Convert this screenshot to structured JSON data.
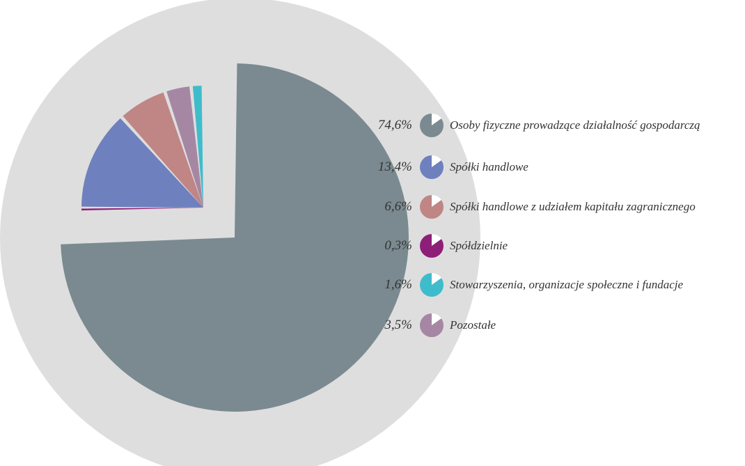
{
  "chart_data": {
    "type": "pie",
    "title": "",
    "slices": [
      {
        "label": "Osoby fizyczne prowadzące działalność gospodarczą",
        "value": 74.6,
        "value_label": "74,6%",
        "color": "#7a8a90"
      },
      {
        "label": "Spółki handlowe",
        "value": 13.4,
        "value_label": "13,4%",
        "color": "#6f80be"
      },
      {
        "label": "Spółki handlowe z udziałem kapitału zagranicznego",
        "value": 6.6,
        "value_label": "6,6%",
        "color": "#c08585"
      },
      {
        "label": "Spółdzielnie",
        "value": 0.3,
        "value_label": "0,3%",
        "color": "#8e1f78"
      },
      {
        "label": "Stowarzyszenia, organizacje społeczne i fundacje",
        "value": 1.6,
        "value_label": "1,6%",
        "color": "#3fbccb"
      },
      {
        "label": "Pozostałe",
        "value": 3.5,
        "value_label": "3,5%",
        "color": "#a587a4"
      }
    ],
    "background_circle_color": "#dedede",
    "legend_position": "right"
  }
}
